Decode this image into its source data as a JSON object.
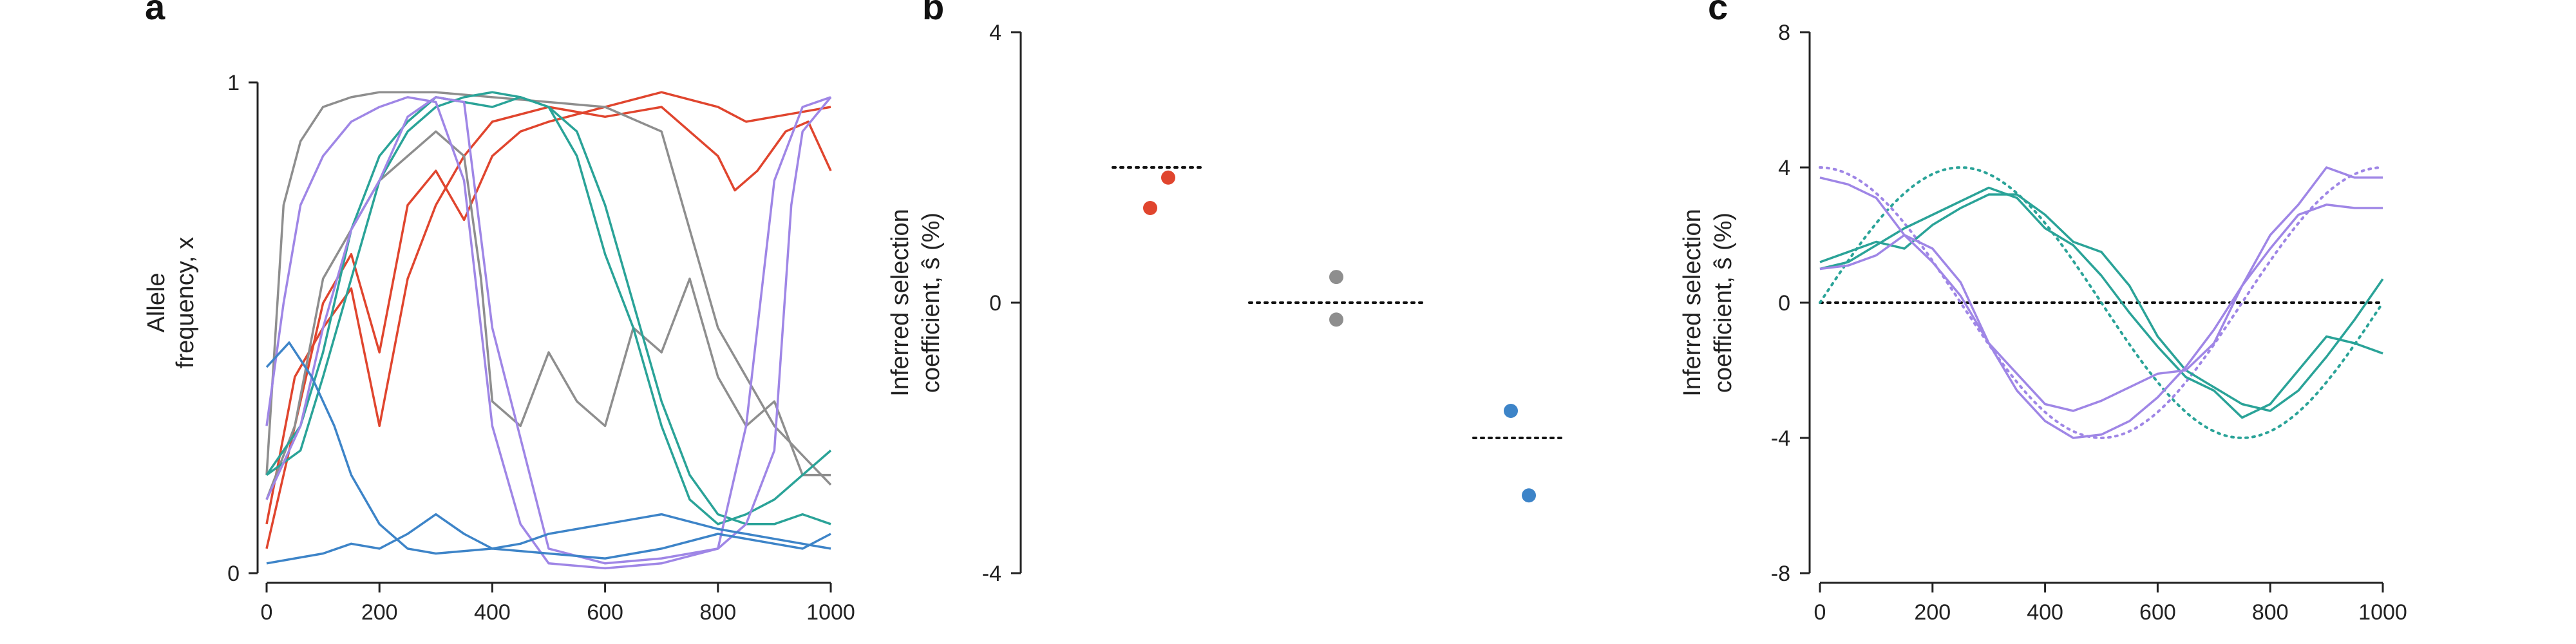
{
  "colors": {
    "red": "#e0452e",
    "gray": "#8e8e8e",
    "teal": "#2aa398",
    "purple": "#9f86e6",
    "blue": "#3d84c8",
    "axis": "#222222"
  },
  "chart_data": [
    {
      "panel": "a",
      "type": "line",
      "ylabel_lines": [
        "Allele",
        "frequency, x"
      ],
      "xlim": [
        0,
        1000
      ],
      "ylim": [
        0,
        1
      ],
      "xticks": [
        "0",
        "200",
        "400",
        "600",
        "800",
        "1000"
      ],
      "yticks": [
        "0",
        "1"
      ],
      "series": [
        {
          "color": "red",
          "x": [
            0,
            50,
            100,
            150,
            200,
            250,
            300,
            350,
            400,
            450,
            500,
            600,
            700,
            800,
            850,
            900,
            950,
            1000
          ],
          "y": [
            0.05,
            0.3,
            0.55,
            0.65,
            0.45,
            0.75,
            0.82,
            0.72,
            0.85,
            0.9,
            0.92,
            0.95,
            0.98,
            0.95,
            0.92,
            0.93,
            0.94,
            0.95
          ]
        },
        {
          "color": "red",
          "x": [
            0,
            50,
            100,
            150,
            200,
            250,
            300,
            350,
            400,
            500,
            600,
            700,
            800,
            830,
            870,
            920,
            960,
            1000
          ],
          "y": [
            0.1,
            0.4,
            0.5,
            0.58,
            0.3,
            0.6,
            0.75,
            0.85,
            0.92,
            0.95,
            0.93,
            0.95,
            0.85,
            0.78,
            0.82,
            0.9,
            0.92,
            0.82
          ]
        },
        {
          "color": "gray",
          "x": [
            0,
            30,
            60,
            100,
            150,
            200,
            300,
            400,
            500,
            600,
            700,
            800,
            900,
            1000
          ],
          "y": [
            0.2,
            0.75,
            0.88,
            0.95,
            0.97,
            0.98,
            0.98,
            0.97,
            0.96,
            0.95,
            0.9,
            0.5,
            0.3,
            0.18
          ]
        },
        {
          "color": "gray",
          "x": [
            0,
            50,
            100,
            200,
            300,
            350,
            380,
            400,
            450,
            500,
            550,
            600,
            650,
            700,
            750,
            800,
            850,
            900,
            950,
            1000
          ],
          "y": [
            0.15,
            0.3,
            0.6,
            0.8,
            0.9,
            0.85,
            0.6,
            0.35,
            0.3,
            0.45,
            0.35,
            0.3,
            0.5,
            0.45,
            0.6,
            0.4,
            0.3,
            0.35,
            0.2,
            0.2
          ]
        },
        {
          "color": "teal",
          "x": [
            0,
            60,
            100,
            150,
            200,
            250,
            300,
            350,
            400,
            450,
            500,
            550,
            600,
            650,
            700,
            750,
            800,
            850,
            900,
            950,
            1000
          ],
          "y": [
            0.2,
            0.3,
            0.45,
            0.7,
            0.85,
            0.92,
            0.97,
            0.96,
            0.95,
            0.97,
            0.95,
            0.85,
            0.65,
            0.5,
            0.3,
            0.15,
            0.1,
            0.12,
            0.15,
            0.2,
            0.25
          ]
        },
        {
          "color": "teal",
          "x": [
            0,
            60,
            100,
            150,
            200,
            250,
            300,
            350,
            400,
            450,
            500,
            550,
            600,
            650,
            700,
            750,
            800,
            850,
            900,
            950,
            1000
          ],
          "y": [
            0.2,
            0.25,
            0.4,
            0.6,
            0.8,
            0.9,
            0.95,
            0.97,
            0.98,
            0.97,
            0.95,
            0.9,
            0.75,
            0.55,
            0.35,
            0.2,
            0.12,
            0.1,
            0.1,
            0.12,
            0.1
          ]
        },
        {
          "color": "purple",
          "x": [
            0,
            30,
            60,
            100,
            150,
            200,
            250,
            300,
            350,
            400,
            450,
            500,
            600,
            700,
            800,
            850,
            900,
            950,
            1000
          ],
          "y": [
            0.3,
            0.55,
            0.75,
            0.85,
            0.92,
            0.95,
            0.97,
            0.96,
            0.8,
            0.3,
            0.1,
            0.02,
            0.01,
            0.02,
            0.05,
            0.3,
            0.8,
            0.95,
            0.97
          ]
        },
        {
          "color": "purple",
          "x": [
            0,
            60,
            100,
            150,
            200,
            250,
            300,
            350,
            400,
            500,
            600,
            700,
            800,
            850,
            900,
            930,
            950,
            1000
          ],
          "y": [
            0.15,
            0.3,
            0.5,
            0.7,
            0.8,
            0.93,
            0.97,
            0.96,
            0.5,
            0.05,
            0.02,
            0.03,
            0.05,
            0.1,
            0.25,
            0.75,
            0.9,
            0.97
          ]
        },
        {
          "color": "blue",
          "x": [
            0,
            40,
            80,
            120,
            150,
            200,
            250,
            300,
            400,
            500,
            600,
            700,
            800,
            900,
            950,
            1000
          ],
          "y": [
            0.42,
            0.47,
            0.4,
            0.3,
            0.2,
            0.1,
            0.05,
            0.04,
            0.05,
            0.04,
            0.03,
            0.05,
            0.08,
            0.06,
            0.05,
            0.08
          ]
        },
        {
          "color": "blue",
          "x": [
            0,
            50,
            100,
            150,
            200,
            250,
            300,
            350,
            400,
            450,
            500,
            600,
            700,
            800,
            900,
            1000
          ],
          "y": [
            0.02,
            0.03,
            0.04,
            0.06,
            0.05,
            0.08,
            0.12,
            0.08,
            0.05,
            0.06,
            0.08,
            0.1,
            0.12,
            0.09,
            0.07,
            0.05
          ]
        }
      ]
    },
    {
      "panel": "b",
      "type": "scatter",
      "ylabel_lines": [
        "Inferred selection",
        "coefficient, ŝ (%)"
      ],
      "ylim": [
        -4,
        4
      ],
      "yticks": [
        "4",
        "0",
        "-4"
      ],
      "true_values": [
        {
          "group": 1,
          "value": 2
        },
        {
          "group": 2,
          "value": 0
        },
        {
          "group": 3,
          "value": -2
        }
      ],
      "points": [
        {
          "group": 1,
          "offset": -0.1,
          "value": 1.4,
          "color": "red"
        },
        {
          "group": 1,
          "offset": 0.1,
          "value": 1.85,
          "color": "red"
        },
        {
          "group": 2,
          "offset": 0.0,
          "value": 0.38,
          "color": "gray"
        },
        {
          "group": 2,
          "offset": 0.0,
          "value": -0.25,
          "color": "gray"
        },
        {
          "group": 3,
          "offset": -0.1,
          "value": -1.6,
          "color": "blue"
        },
        {
          "group": 3,
          "offset": 0.1,
          "value": -2.85,
          "color": "blue"
        }
      ]
    },
    {
      "panel": "c",
      "type": "line",
      "ylabel_lines": [
        "Inferred selection",
        "coefficient, ŝ (%)"
      ],
      "xlim": [
        0,
        1000
      ],
      "ylim": [
        -8,
        8
      ],
      "xticks": [
        "0",
        "200",
        "400",
        "600",
        "800",
        "1000"
      ],
      "yticks": [
        "8",
        "4",
        "0",
        "-4",
        "-8"
      ],
      "true_curves": [
        {
          "color": "teal",
          "amplitude": 4,
          "phase": 0
        },
        {
          "color": "purple",
          "amplitude": 4,
          "phase": 250
        }
      ],
      "series": [
        {
          "color": "teal",
          "x": [
            0,
            50,
            100,
            150,
            200,
            250,
            300,
            350,
            400,
            450,
            500,
            550,
            600,
            650,
            700,
            750,
            800,
            850,
            900,
            950,
            1000
          ],
          "y": [
            1.0,
            1.2,
            1.7,
            2.2,
            2.6,
            3.0,
            3.4,
            3.1,
            2.2,
            1.7,
            0.8,
            -0.3,
            -1.3,
            -2.2,
            -2.6,
            -3.4,
            -3.0,
            -2.0,
            -1.0,
            -1.2,
            -1.5
          ]
        },
        {
          "color": "teal",
          "x": [
            0,
            50,
            100,
            150,
            200,
            250,
            300,
            350,
            400,
            450,
            500,
            550,
            600,
            650,
            700,
            750,
            800,
            850,
            900,
            950,
            1000
          ],
          "y": [
            1.2,
            1.5,
            1.8,
            1.6,
            2.3,
            2.8,
            3.2,
            3.2,
            2.6,
            1.8,
            1.5,
            0.5,
            -1.0,
            -2.0,
            -2.5,
            -3.0,
            -3.2,
            -2.6,
            -1.6,
            -0.5,
            0.7
          ]
        },
        {
          "color": "purple",
          "x": [
            0,
            50,
            100,
            150,
            200,
            250,
            300,
            350,
            400,
            450,
            500,
            550,
            600,
            650,
            700,
            750,
            800,
            850,
            900,
            950,
            1000
          ],
          "y": [
            3.7,
            3.5,
            3.1,
            2.0,
            1.2,
            0.2,
            -1.2,
            -2.6,
            -3.5,
            -4.0,
            -3.9,
            -3.5,
            -2.8,
            -1.9,
            -0.8,
            0.5,
            2.0,
            2.9,
            4.0,
            3.7,
            3.7
          ]
        },
        {
          "color": "purple",
          "x": [
            0,
            50,
            100,
            150,
            200,
            250,
            300,
            350,
            400,
            450,
            500,
            550,
            600,
            650,
            700,
            750,
            800,
            850,
            900,
            950,
            1000
          ],
          "y": [
            1.0,
            1.1,
            1.4,
            2.0,
            1.6,
            0.6,
            -1.2,
            -2.1,
            -3.0,
            -3.2,
            -2.9,
            -2.5,
            -2.1,
            -2.0,
            -1.2,
            0.5,
            1.6,
            2.6,
            2.9,
            2.8,
            2.8
          ]
        }
      ]
    }
  ],
  "panel_letters": [
    "a",
    "b",
    "c"
  ]
}
